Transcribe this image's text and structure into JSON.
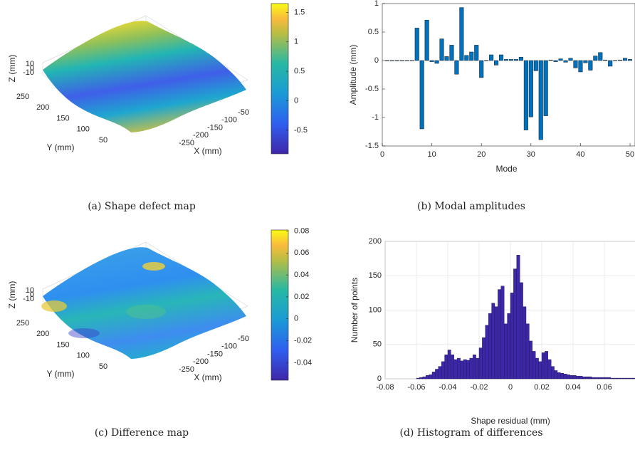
{
  "chart_data": [
    {
      "type": "surface",
      "caption": "(a) Shape defect map",
      "colormap": "parula",
      "xlabel": "X (mm)",
      "ylabel": "Y (mm)",
      "zlabel": "Z (mm)",
      "xticks": [
        -250,
        -200,
        -150,
        -100,
        -50
      ],
      "yticks": [
        250,
        200,
        150,
        100,
        50
      ],
      "zticks": [
        10,
        0,
        -10
      ],
      "colorbar": {
        "lim": [
          -0.9,
          1.65
        ],
        "ticks": [
          -0.5,
          0,
          0.5,
          1,
          1.5
        ]
      }
    },
    {
      "type": "bar",
      "caption": "(b) Modal amplitudes",
      "xlabel": "Mode",
      "ylabel": "Amplitude (mm)",
      "color": "#0072bd",
      "x": [
        1,
        2,
        3,
        4,
        5,
        6,
        7,
        8,
        9,
        10,
        11,
        12,
        13,
        14,
        15,
        16,
        17,
        18,
        19,
        20,
        21,
        22,
        23,
        24,
        25,
        26,
        27,
        28,
        29,
        30,
        31,
        32,
        33,
        34,
        35,
        36,
        37,
        38,
        39,
        40,
        41,
        42,
        43,
        44,
        45,
        46,
        47,
        48,
        49,
        50
      ],
      "values": [
        0,
        0,
        0,
        0,
        0,
        0,
        0.57,
        -1.2,
        0.71,
        -0.02,
        -0.05,
        0.38,
        0.07,
        0.27,
        -0.24,
        0.93,
        0.09,
        0.15,
        0.27,
        -0.3,
        0,
        0.1,
        -0.08,
        0.1,
        0.02,
        0.02,
        0.02,
        0.06,
        -1.22,
        -0.99,
        -0.18,
        -1.39,
        -0.97,
        0.01,
        -0.02,
        0.03,
        -0.03,
        0.04,
        -0.13,
        -0.2,
        -0.04,
        -0.17,
        0.08,
        0.14,
        0.01,
        -0.1,
        0,
        0.01,
        0.04,
        0.02
      ],
      "xlim": [
        0,
        51
      ],
      "xticks": [
        0,
        10,
        20,
        30,
        40,
        50
      ],
      "ylim": [
        -1.5,
        1
      ],
      "yticks": [
        -1.5,
        -1,
        -0.5,
        0,
        0.5,
        1
      ],
      "grid": false
    },
    {
      "type": "surface",
      "caption": "(c) Difference map",
      "colormap": "parula",
      "xlabel": "X (mm)",
      "ylabel": "Y (mm)",
      "zlabel": "Z (mm)",
      "xticks": [
        -250,
        -200,
        -150,
        -100,
        -50
      ],
      "yticks": [
        250,
        200,
        150,
        100,
        50
      ],
      "zticks": [
        10,
        0,
        -10
      ],
      "colorbar": {
        "lim": [
          -0.056,
          0.081
        ],
        "ticks": [
          -0.04,
          -0.02,
          0,
          0.02,
          0.04,
          0.06,
          0.08
        ]
      }
    },
    {
      "type": "histogram",
      "caption": "(d) Histogram of differences",
      "xlabel": "Shape residual (mm)",
      "ylabel": "Number of points",
      "color": "#3e26a8",
      "bins": [
        -0.06,
        -0.058,
        -0.056,
        -0.054,
        -0.052,
        -0.05,
        -0.048,
        -0.046,
        -0.044,
        -0.042,
        -0.04,
        -0.038,
        -0.036,
        -0.034,
        -0.032,
        -0.03,
        -0.028,
        -0.026,
        -0.024,
        -0.022,
        -0.02,
        -0.018,
        -0.016,
        -0.014,
        -0.012,
        -0.01,
        -0.008,
        -0.006,
        -0.004,
        -0.002,
        0,
        0.002,
        0.004,
        0.006,
        0.008,
        0.01,
        0.012,
        0.014,
        0.016,
        0.018,
        0.02,
        0.022,
        0.024,
        0.026,
        0.028,
        0.03,
        0.032,
        0.034,
        0.036,
        0.038,
        0.04,
        0.042,
        0.044,
        0.046,
        0.048,
        0.05,
        0.052,
        0.054,
        0.056,
        0.058,
        0.06,
        0.062,
        0.064,
        0.066,
        0.068,
        0.07,
        0.072,
        0.074,
        0.076,
        0.078,
        0.08
      ],
      "counts": [
        1,
        2,
        3,
        5,
        6,
        10,
        14,
        18,
        25,
        35,
        42,
        35,
        28,
        30,
        26,
        28,
        27,
        30,
        35,
        30,
        45,
        60,
        78,
        95,
        110,
        105,
        130,
        135,
        80,
        95,
        125,
        160,
        180,
        140,
        105,
        80,
        55,
        40,
        30,
        25,
        38,
        40,
        28,
        18,
        12,
        9,
        8,
        7,
        6,
        5,
        5,
        4,
        4,
        3,
        3,
        3,
        2,
        2,
        2,
        2,
        2,
        2,
        1,
        1,
        1,
        1,
        1,
        1,
        1,
        1
      ],
      "xlim": [
        -0.08,
        0.08
      ],
      "xticks": [
        -0.08,
        -0.06,
        -0.04,
        -0.02,
        0,
        0.02,
        0.04,
        0.06
      ],
      "ylim": [
        0,
        200
      ],
      "yticks": [
        0,
        50,
        100,
        150,
        200
      ],
      "grid": true
    }
  ]
}
